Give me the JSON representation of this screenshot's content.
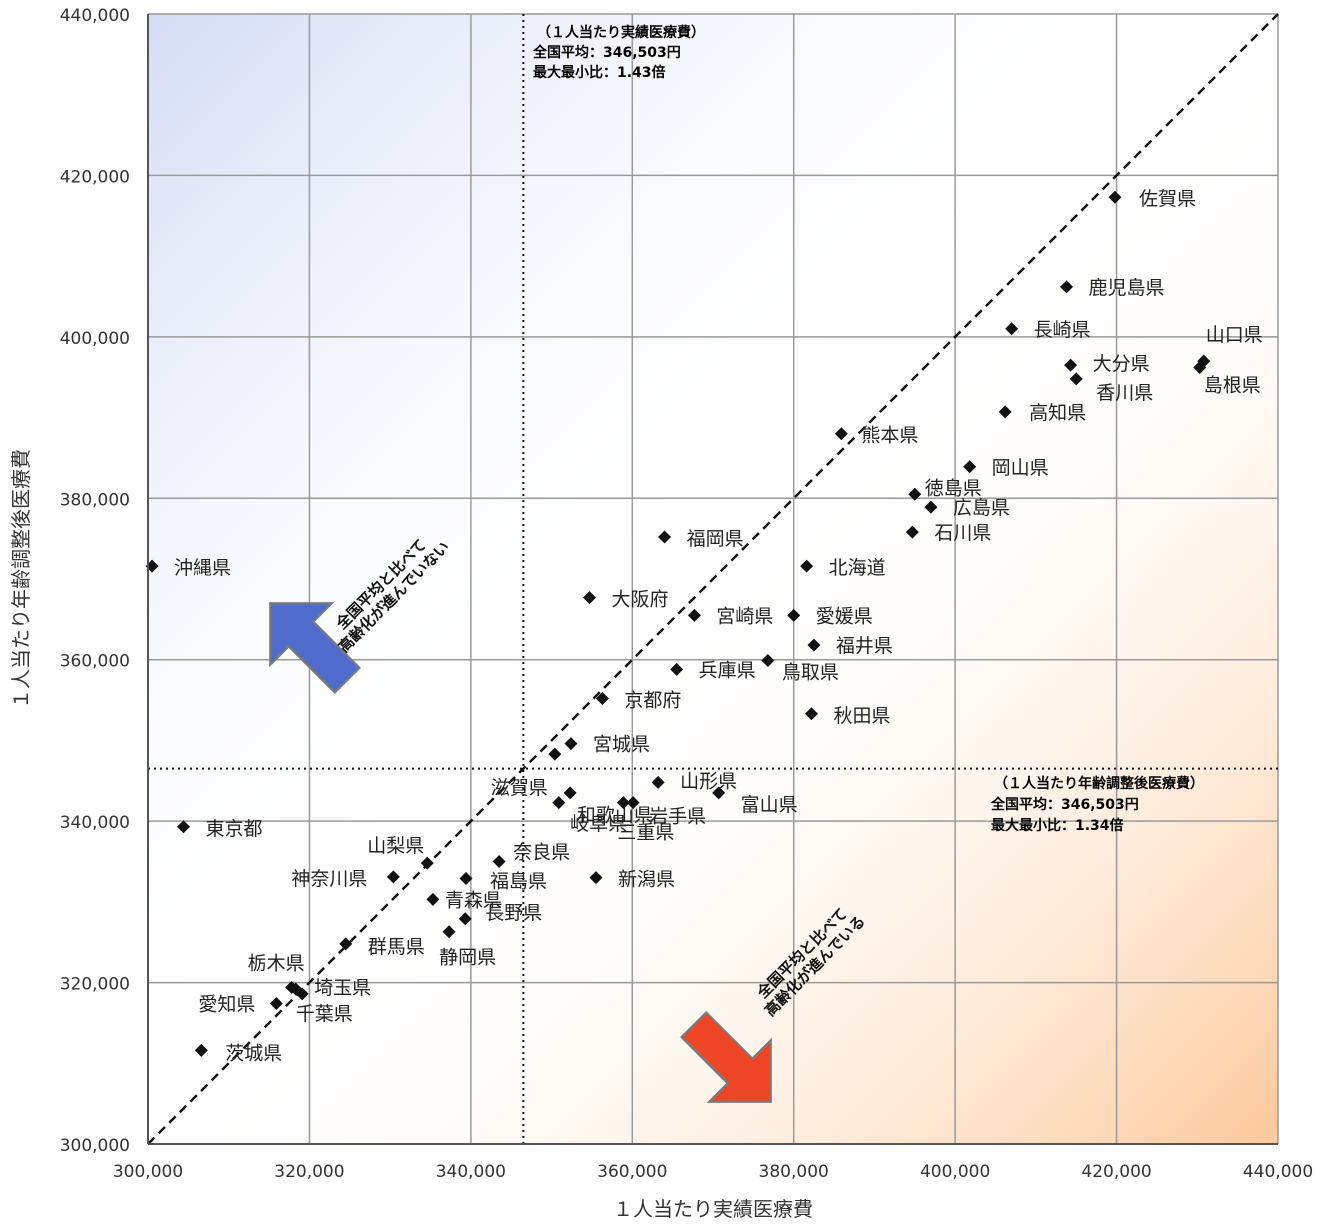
{
  "chart_data": {
    "type": "scatter",
    "title": "",
    "xlabel": "１人当たり実績医療費",
    "ylabel": "１人当たり年齢調整後医療費",
    "xlim": [
      300000,
      440000
    ],
    "ylim": [
      300000,
      440000
    ],
    "xticks": [
      "300,000",
      "320,000",
      "340,000",
      "360,000",
      "380,000",
      "400,000",
      "420,000",
      "440,000"
    ],
    "yticks": [
      "300,000",
      "320,000",
      "340,000",
      "360,000",
      "380,000",
      "400,000",
      "420,000",
      "440,000"
    ],
    "grid": true,
    "reference_x": 346503,
    "reference_y": 346503,
    "diagonal": "y = x (dashed)",
    "points": [
      {
        "name": "佐賀県",
        "x": 419800,
        "y": 417300
      },
      {
        "name": "鹿児島県",
        "x": 413800,
        "y": 406200
      },
      {
        "name": "長崎県",
        "x": 407000,
        "y": 401000
      },
      {
        "name": "山口県",
        "x": 430800,
        "y": 397000
      },
      {
        "name": "島根県",
        "x": 430300,
        "y": 396200
      },
      {
        "name": "大分県",
        "x": 414300,
        "y": 396500
      },
      {
        "name": "香川県",
        "x": 415000,
        "y": 394800
      },
      {
        "name": "高知県",
        "x": 406200,
        "y": 390700
      },
      {
        "name": "熊本県",
        "x": 385900,
        "y": 388000
      },
      {
        "name": "岡山県",
        "x": 401800,
        "y": 383900
      },
      {
        "name": "徳島県",
        "x": 395000,
        "y": 380500
      },
      {
        "name": "広島県",
        "x": 397000,
        "y": 378900
      },
      {
        "name": "石川県",
        "x": 394700,
        "y": 375800
      },
      {
        "name": "福岡県",
        "x": 364000,
        "y": 375200
      },
      {
        "name": "北海道",
        "x": 381600,
        "y": 371600
      },
      {
        "name": "沖縄県",
        "x": 300500,
        "y": 371600
      },
      {
        "name": "大阪府",
        "x": 354700,
        "y": 367700
      },
      {
        "name": "宮崎県",
        "x": 367700,
        "y": 365500
      },
      {
        "name": "愛媛県",
        "x": 380000,
        "y": 365500
      },
      {
        "name": "福井県",
        "x": 382500,
        "y": 361800
      },
      {
        "name": "鳥取県",
        "x": 376800,
        "y": 359900
      },
      {
        "name": "兵庫県",
        "x": 365500,
        "y": 358800
      },
      {
        "name": "京都府",
        "x": 356300,
        "y": 355200
      },
      {
        "name": "秋田県",
        "x": 382200,
        "y": 353300
      },
      {
        "name": "宮城県",
        "x": 352400,
        "y": 349600
      },
      {
        "name": "滋賀県",
        "x": 350400,
        "y": 348300
      },
      {
        "name": "和歌山県",
        "x": 350900,
        "y": 342300
      },
      {
        "name": "山形県",
        "x": 363200,
        "y": 344800
      },
      {
        "name": "富山県",
        "x": 370700,
        "y": 343500
      },
      {
        "name": "岐阜県",
        "x": 352300,
        "y": 343500
      },
      {
        "name": "岩手県",
        "x": 360100,
        "y": 342300
      },
      {
        "name": "三重県",
        "x": 358900,
        "y": 342300
      },
      {
        "name": "東京都",
        "x": 304400,
        "y": 339300
      },
      {
        "name": "奈良県",
        "x": 343500,
        "y": 335000
      },
      {
        "name": "山梨県",
        "x": 334600,
        "y": 334800
      },
      {
        "name": "神奈川県",
        "x": 330400,
        "y": 333100
      },
      {
        "name": "福島県",
        "x": 339400,
        "y": 332900
      },
      {
        "name": "新潟県",
        "x": 355500,
        "y": 333000
      },
      {
        "name": "青森県",
        "x": 335300,
        "y": 330300
      },
      {
        "name": "長野県",
        "x": 339300,
        "y": 327900
      },
      {
        "name": "静岡県",
        "x": 337300,
        "y": 326300
      },
      {
        "name": "群馬県",
        "x": 324500,
        "y": 324800
      },
      {
        "name": "栃木県",
        "x": 317800,
        "y": 319400
      },
      {
        "name": "埼玉県",
        "x": 319100,
        "y": 318600
      },
      {
        "name": "愛知県",
        "x": 315900,
        "y": 317400
      },
      {
        "name": "千葉県",
        "x": 318300,
        "y": 319200
      },
      {
        "name": "茨城県",
        "x": 306600,
        "y": 311600
      }
    ],
    "annotations": {
      "x_ref": {
        "title": "（１人当たり実績医療費）",
        "avg": "全国平均：346,503円",
        "ratio": "最大最小比：1.43倍"
      },
      "y_ref": {
        "title": "（１人当たり年齢調整後医療費）",
        "avg": "全国平均：346,503円",
        "ratio": "最大最小比：1.34倍"
      },
      "arrow_up": {
        "line1": "全国平均と比べて",
        "line2": "高齢化が進んでいない",
        "color": "#4f6bcc"
      },
      "arrow_down": {
        "line1": "全国平均と比べて",
        "line2": "高齢化が進んでいる",
        "color": "#ee4527"
      }
    },
    "colors": {
      "top_left": "#d4dcf4",
      "bottom_right": "#fcc89a",
      "marker": "#111111",
      "grid": "#9a9a9a"
    }
  }
}
